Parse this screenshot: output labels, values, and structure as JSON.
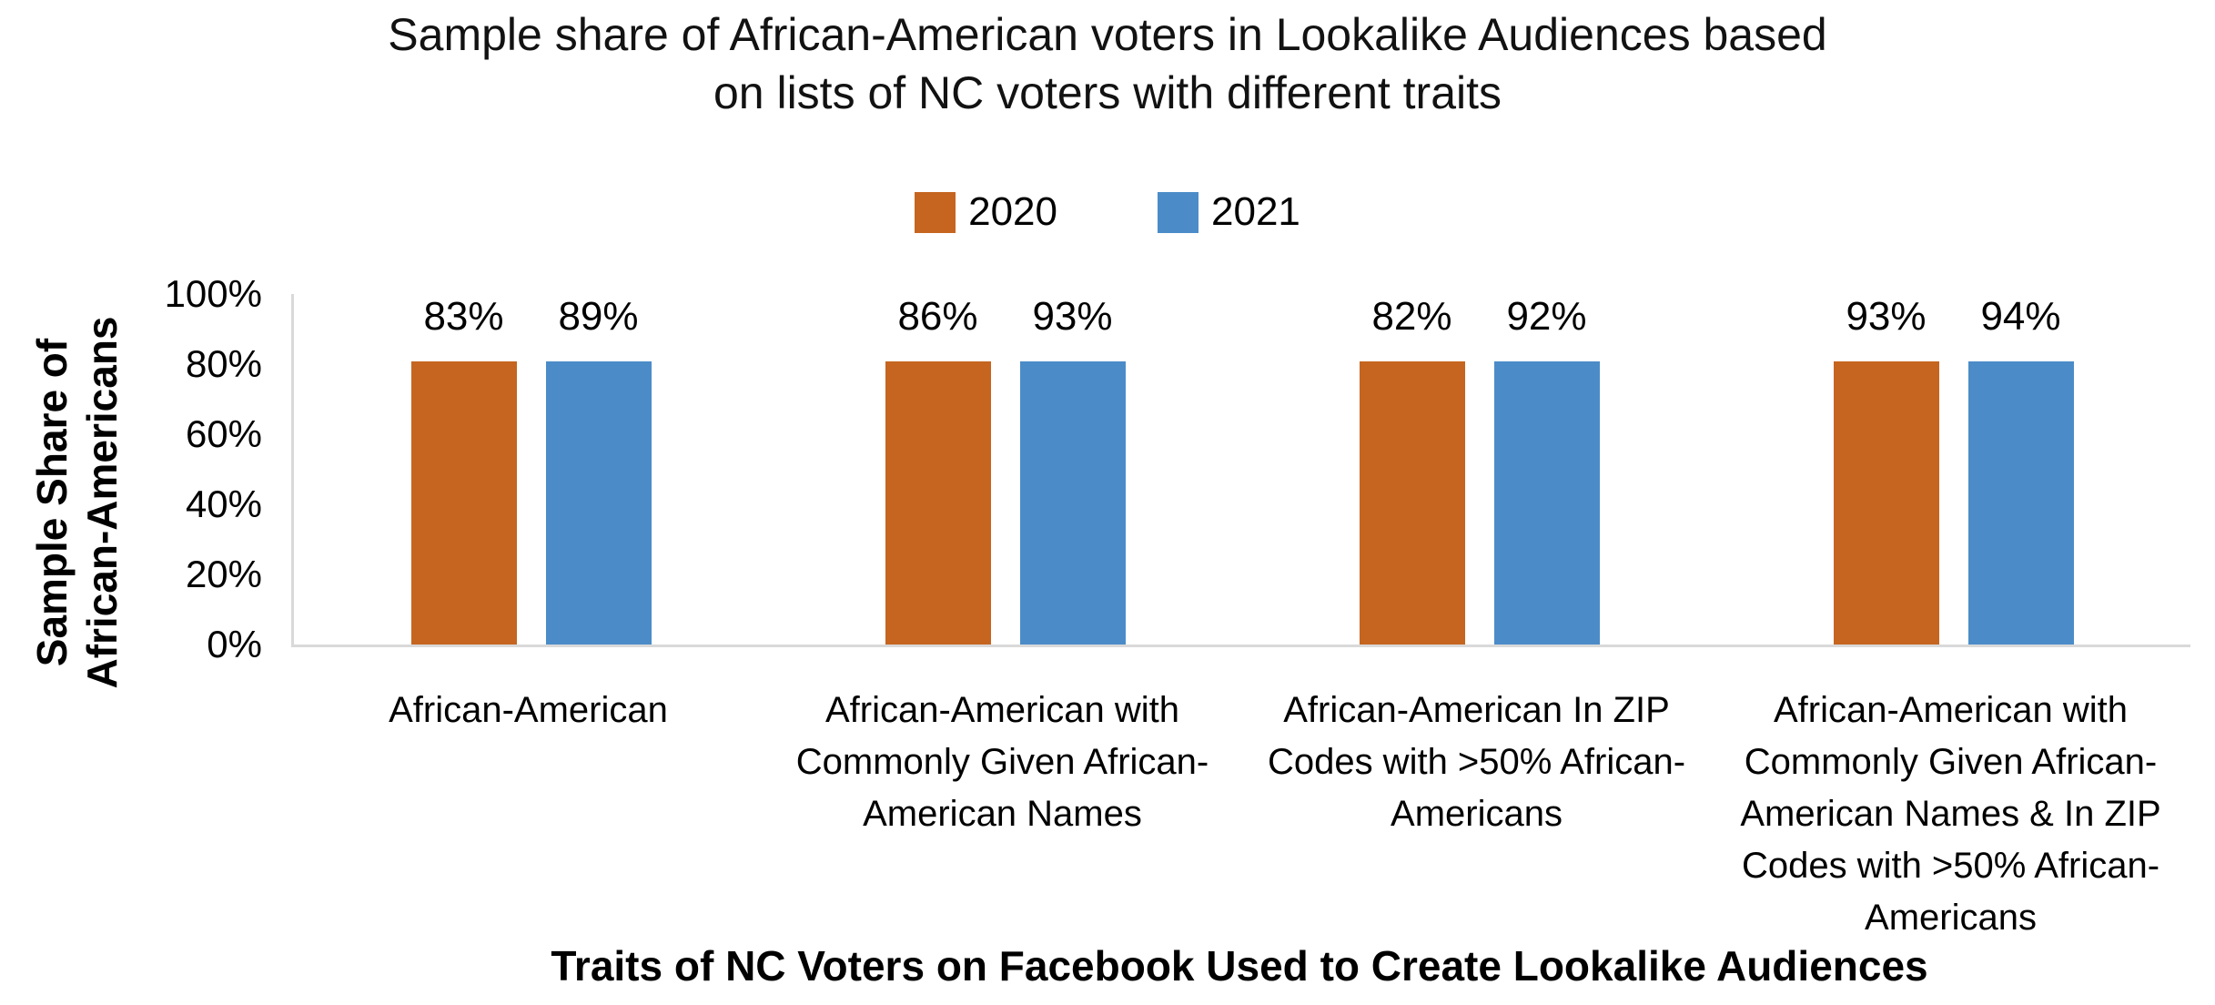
{
  "chart_data": {
    "type": "bar",
    "title": "Sample share of African-American voters in Lookalike Audiences based on lists of NC voters with different traits",
    "title_display": "Sample share of African-American voters in Lookalike Audiences based\non lists of NC voters with different traits",
    "xlabel": "Traits of NC Voters on Facebook Used to Create Lookalike Audiences",
    "ylabel": "Sample Share of African-Americans",
    "ylabel_display": "Sample Share of\nAfrican-Americans",
    "categories": [
      "African-American",
      "African-American with Commonly Given African-American Names",
      "African-American In ZIP Codes with >50% African-Americans",
      "African-American with Commonly Given African-American Names & In ZIP Codes with >50% African-Americans"
    ],
    "categories_display": [
      "African-American",
      "African-American with\nCommonly Given African-\nAmerican Names",
      "African-American In ZIP\nCodes with >50% African-\nAmericans",
      "African-American with\nCommonly Given African-\nAmerican Names & In ZIP\nCodes with >50% African-\nAmericans"
    ],
    "series": [
      {
        "name": "2020",
        "color": "#C5651F",
        "values": [
          83,
          86,
          82,
          93
        ]
      },
      {
        "name": "2021",
        "color": "#4B8CC8",
        "values": [
          89,
          93,
          92,
          94
        ]
      }
    ],
    "value_labels": [
      [
        "83%",
        "86%",
        "82%",
        "93%"
      ],
      [
        "89%",
        "93%",
        "92%",
        "94%"
      ]
    ],
    "y_ticks": [
      "0%",
      "20%",
      "40%",
      "60%",
      "80%",
      "100%"
    ],
    "ylim": [
      0,
      100
    ],
    "grid": false,
    "legend_position": "top-center",
    "value_label_position": "outside-end",
    "axis_line_color": "#D9D9D9",
    "text_color": "#000000",
    "background_color": "#FFFFFF"
  }
}
